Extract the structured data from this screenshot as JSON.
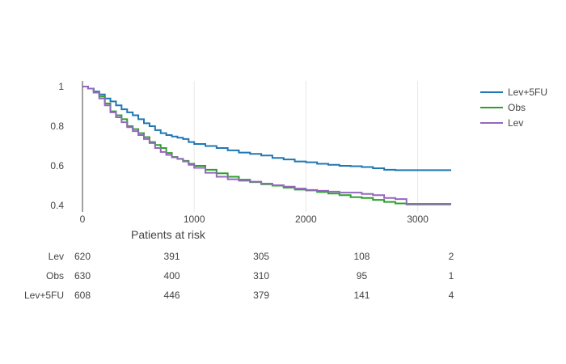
{
  "chart_data": {
    "type": "line",
    "title": "",
    "xlabel": "",
    "ylabel": "",
    "xlim": [
      0,
      3300
    ],
    "ylim": [
      0.4,
      1.0
    ],
    "x_ticks": [
      0,
      1000,
      2000,
      3000
    ],
    "x_tick_labels": [
      "0",
      "1000",
      "2000",
      "3000"
    ],
    "y_ticks": [
      0.4,
      0.6,
      0.8,
      1.0
    ],
    "y_tick_labels": [
      "0.4",
      "0.6",
      "0.8",
      "1"
    ],
    "grid": true,
    "legend_position": "top-right",
    "series": [
      {
        "name": "Lev+5FU",
        "color": "#1f77b4",
        "points": [
          [
            0,
            1.0
          ],
          [
            50,
            0.99
          ],
          [
            100,
            0.975
          ],
          [
            150,
            0.96
          ],
          [
            200,
            0.94
          ],
          [
            250,
            0.925
          ],
          [
            300,
            0.905
          ],
          [
            350,
            0.885
          ],
          [
            400,
            0.87
          ],
          [
            450,
            0.855
          ],
          [
            500,
            0.835
          ],
          [
            550,
            0.815
          ],
          [
            600,
            0.8
          ],
          [
            650,
            0.78
          ],
          [
            700,
            0.765
          ],
          [
            750,
            0.755
          ],
          [
            800,
            0.748
          ],
          [
            850,
            0.742
          ],
          [
            900,
            0.735
          ],
          [
            950,
            0.72
          ],
          [
            1000,
            0.71
          ],
          [
            1100,
            0.7
          ],
          [
            1200,
            0.69
          ],
          [
            1300,
            0.678
          ],
          [
            1400,
            0.667
          ],
          [
            1500,
            0.66
          ],
          [
            1600,
            0.652
          ],
          [
            1700,
            0.64
          ],
          [
            1800,
            0.632
          ],
          [
            1900,
            0.622
          ],
          [
            2000,
            0.618
          ],
          [
            2100,
            0.61
          ],
          [
            2200,
            0.605
          ],
          [
            2300,
            0.6
          ],
          [
            2400,
            0.598
          ],
          [
            2500,
            0.594
          ],
          [
            2600,
            0.588
          ],
          [
            2700,
            0.58
          ],
          [
            2800,
            0.578
          ],
          [
            3000,
            0.578
          ],
          [
            3200,
            0.578
          ],
          [
            3300,
            0.578
          ]
        ]
      },
      {
        "name": "Obs",
        "color": "#2ca02c",
        "points": [
          [
            0,
            1.0
          ],
          [
            50,
            0.99
          ],
          [
            100,
            0.97
          ],
          [
            150,
            0.95
          ],
          [
            200,
            0.915
          ],
          [
            250,
            0.875
          ],
          [
            300,
            0.855
          ],
          [
            350,
            0.835
          ],
          [
            400,
            0.8
          ],
          [
            450,
            0.785
          ],
          [
            500,
            0.765
          ],
          [
            550,
            0.745
          ],
          [
            600,
            0.72
          ],
          [
            650,
            0.705
          ],
          [
            700,
            0.69
          ],
          [
            750,
            0.665
          ],
          [
            800,
            0.645
          ],
          [
            850,
            0.635
          ],
          [
            900,
            0.625
          ],
          [
            950,
            0.61
          ],
          [
            1000,
            0.6
          ],
          [
            1100,
            0.58
          ],
          [
            1200,
            0.562
          ],
          [
            1300,
            0.545
          ],
          [
            1400,
            0.53
          ],
          [
            1500,
            0.518
          ],
          [
            1600,
            0.507
          ],
          [
            1700,
            0.5
          ],
          [
            1800,
            0.49
          ],
          [
            1900,
            0.48
          ],
          [
            2000,
            0.476
          ],
          [
            2100,
            0.468
          ],
          [
            2200,
            0.46
          ],
          [
            2300,
            0.452
          ],
          [
            2400,
            0.442
          ],
          [
            2500,
            0.438
          ],
          [
            2600,
            0.428
          ],
          [
            2700,
            0.418
          ],
          [
            2800,
            0.41
          ],
          [
            2900,
            0.405
          ],
          [
            3000,
            0.405
          ],
          [
            3200,
            0.405
          ],
          [
            3300,
            0.405
          ]
        ]
      },
      {
        "name": "Lev",
        "color": "#9467bd",
        "points": [
          [
            0,
            1.0
          ],
          [
            50,
            0.99
          ],
          [
            100,
            0.97
          ],
          [
            150,
            0.94
          ],
          [
            200,
            0.905
          ],
          [
            250,
            0.87
          ],
          [
            300,
            0.845
          ],
          [
            350,
            0.82
          ],
          [
            400,
            0.795
          ],
          [
            450,
            0.775
          ],
          [
            500,
            0.755
          ],
          [
            550,
            0.735
          ],
          [
            600,
            0.715
          ],
          [
            650,
            0.69
          ],
          [
            700,
            0.67
          ],
          [
            750,
            0.655
          ],
          [
            800,
            0.643
          ],
          [
            850,
            0.635
          ],
          [
            900,
            0.622
          ],
          [
            950,
            0.605
          ],
          [
            1000,
            0.59
          ],
          [
            1100,
            0.565
          ],
          [
            1200,
            0.545
          ],
          [
            1300,
            0.532
          ],
          [
            1400,
            0.525
          ],
          [
            1500,
            0.52
          ],
          [
            1600,
            0.51
          ],
          [
            1700,
            0.502
          ],
          [
            1800,
            0.495
          ],
          [
            1900,
            0.485
          ],
          [
            2000,
            0.478
          ],
          [
            2100,
            0.474
          ],
          [
            2200,
            0.47
          ],
          [
            2300,
            0.465
          ],
          [
            2400,
            0.465
          ],
          [
            2500,
            0.458
          ],
          [
            2600,
            0.452
          ],
          [
            2700,
            0.438
          ],
          [
            2800,
            0.432
          ],
          [
            2900,
            0.408
          ],
          [
            3000,
            0.408
          ],
          [
            3200,
            0.408
          ],
          [
            3300,
            0.408
          ]
        ]
      }
    ],
    "risk_table": {
      "title": "Patients at risk",
      "times": [
        0,
        800,
        1600,
        2500,
        3300
      ],
      "rows": [
        {
          "label": "Lev",
          "values": [
            "620",
            "391",
            "305",
            "108",
            "2"
          ]
        },
        {
          "label": "Obs",
          "values": [
            "630",
            "400",
            "310",
            "95",
            "1"
          ]
        },
        {
          "label": "Lev+5FU",
          "values": [
            "608",
            "446",
            "379",
            "141",
            "4"
          ]
        }
      ]
    }
  }
}
